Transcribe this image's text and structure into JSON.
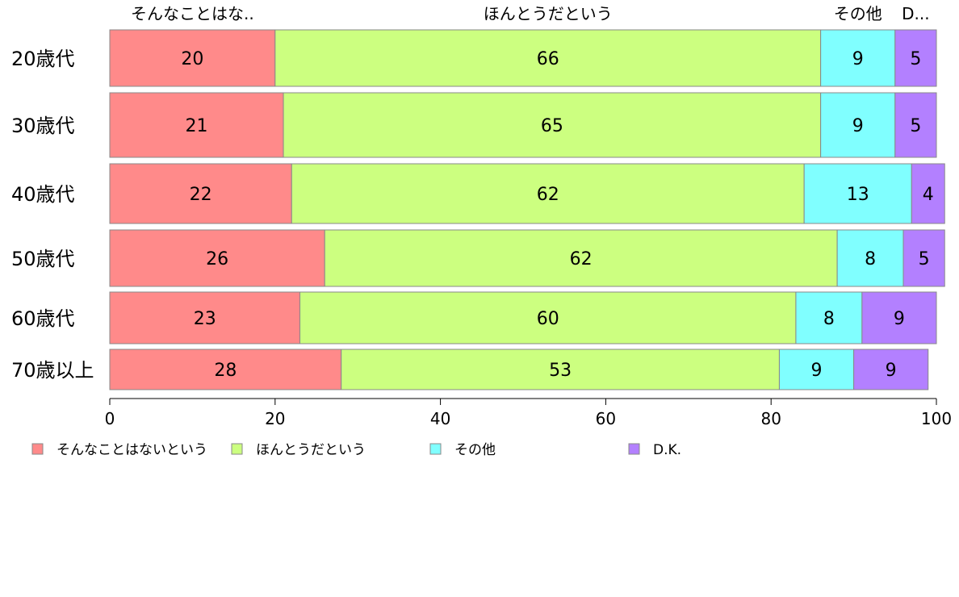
{
  "chart_data": {
    "type": "bar",
    "orientation": "horizontal",
    "stacked": true,
    "categories": [
      "20歳代",
      "30歳代",
      "40歳代",
      "50歳代",
      "60歳代",
      "70歳以上"
    ],
    "series": [
      {
        "name": "そんなことはないという",
        "color": "#ff8a8a",
        "values": [
          20,
          21,
          22,
          26,
          23,
          28
        ]
      },
      {
        "name": "ほんとうだという",
        "color": "#ccff80",
        "values": [
          66,
          65,
          62,
          62,
          60,
          53
        ]
      },
      {
        "name": "その他",
        "color": "#80ffff",
        "values": [
          9,
          9,
          13,
          8,
          8,
          9
        ]
      },
      {
        "name": "D.K.",
        "color": "#b380ff",
        "values": [
          5,
          5,
          4,
          5,
          9,
          9
        ]
      }
    ],
    "top_labels": [
      "そんなことはな..",
      "ほんとうだという",
      "その他",
      "D..."
    ],
    "xlim": [
      0,
      100
    ],
    "xticks": [
      "0",
      "20",
      "40",
      "60",
      "80",
      "100"
    ],
    "grid": false,
    "legend_position": "bottom-left"
  }
}
